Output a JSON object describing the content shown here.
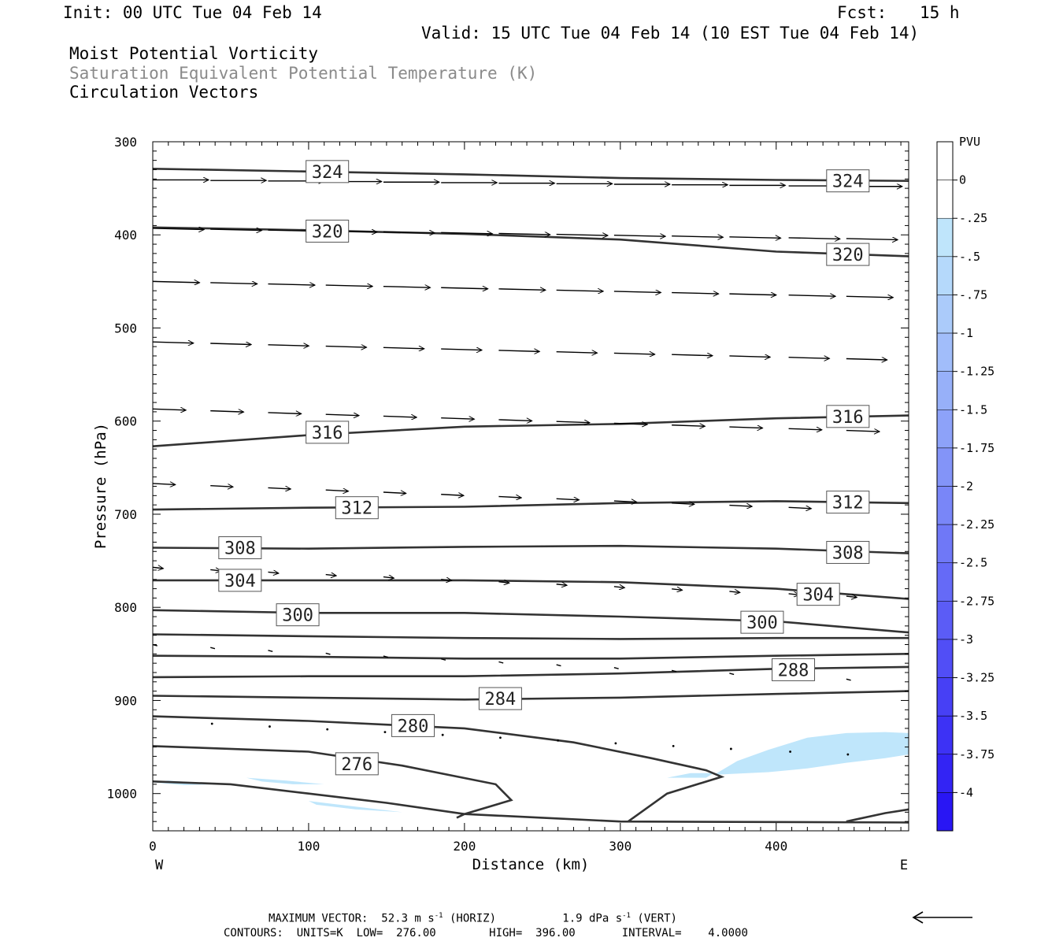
{
  "header": {
    "init": "Init: 00 UTC Tue 04 Feb 14",
    "fcst_label": "Fcst:",
    "fcst_value": "15 h",
    "valid": "Valid: 15 UTC Tue 04 Feb 14 (10 EST Tue 04 Feb 14)",
    "field1": "Moist Potential Vorticity",
    "field2": "Saturation Equivalent Potential Temperature (K)",
    "field3": "Circulation Vectors"
  },
  "colors": {
    "contour": "#333333",
    "shade_light": "#bfe6fb",
    "colorbar": [
      "#ffffff",
      "#ffffff",
      "#bfe5fb",
      "#b5d9fb",
      "#abcbfa",
      "#a1bdfa",
      "#97b0f9",
      "#8da2f9",
      "#8394f8",
      "#7986f8",
      "#6f78f7",
      "#656af7",
      "#5b5cf6",
      "#514ef6",
      "#4740f5",
      "#3d32f5",
      "#3324f4",
      "#2916f4",
      "#0000ff"
    ]
  },
  "chart_data": {
    "type": "cross-section",
    "xlabel": "Distance (km)",
    "ylabel": "Pressure (hPa)",
    "xlim": [
      0,
      485
    ],
    "ylim": [
      300,
      1040
    ],
    "x_ticks": [
      "0",
      "100",
      "200",
      "300",
      "400"
    ],
    "x_tick_values": [
      0,
      100,
      200,
      300,
      400
    ],
    "y_ticks": [
      "300",
      "400",
      "500",
      "600",
      "700",
      "800",
      "900",
      "1000"
    ],
    "y_tick_values": [
      300,
      400,
      500,
      600,
      700,
      800,
      900,
      1000
    ],
    "left_end": "W",
    "right_end": "E",
    "colorbar": {
      "unit": "PVU",
      "labels": [
        "0",
        "-.25",
        "-.5",
        "-.75",
        "-1",
        "-1.25",
        "-1.5",
        "-1.75",
        "-2",
        "-2.25",
        "-2.5",
        "-2.75",
        "-3",
        "-3.25",
        "-3.5",
        "-3.75",
        "-4"
      ],
      "values": [
        0,
        -0.25,
        -0.5,
        -0.75,
        -1,
        -1.25,
        -1.5,
        -1.75,
        -2,
        -2.25,
        -2.5,
        -2.75,
        -3,
        -3.25,
        -3.5,
        -3.75,
        -4
      ]
    },
    "contours": [
      {
        "value": 324,
        "points": [
          [
            0,
            329
          ],
          [
            100,
            332
          ],
          [
            200,
            335
          ],
          [
            300,
            339
          ],
          [
            400,
            341
          ],
          [
            485,
            342
          ]
        ],
        "labels": [
          {
            "text": "324",
            "x": 112,
            "p": 332
          },
          {
            "text": "324",
            "x": 446,
            "p": 342
          }
        ]
      },
      {
        "value": 320,
        "points": [
          [
            0,
            392
          ],
          [
            100,
            395
          ],
          [
            200,
            399
          ],
          [
            300,
            405
          ],
          [
            400,
            418
          ],
          [
            485,
            423
          ]
        ],
        "labels": [
          {
            "text": "320",
            "x": 112,
            "p": 396
          },
          {
            "text": "320",
            "x": 446,
            "p": 421
          }
        ]
      },
      {
        "value": 316,
        "points": [
          [
            0,
            627
          ],
          [
            100,
            615
          ],
          [
            200,
            606
          ],
          [
            300,
            603
          ],
          [
            400,
            597
          ],
          [
            485,
            594
          ]
        ],
        "labels": [
          {
            "text": "316",
            "x": 112,
            "p": 612
          },
          {
            "text": "316",
            "x": 446,
            "p": 595
          }
        ]
      },
      {
        "value": 312,
        "points": [
          [
            0,
            695
          ],
          [
            100,
            693
          ],
          [
            200,
            692
          ],
          [
            300,
            688
          ],
          [
            400,
            686
          ],
          [
            485,
            688
          ]
        ],
        "labels": [
          {
            "text": "312",
            "x": 131,
            "p": 693
          },
          {
            "text": "312",
            "x": 446,
            "p": 687
          }
        ]
      },
      {
        "value": 308,
        "points": [
          [
            0,
            736
          ],
          [
            100,
            737
          ],
          [
            200,
            735
          ],
          [
            300,
            734
          ],
          [
            400,
            737
          ],
          [
            485,
            742
          ]
        ],
        "labels": [
          {
            "text": "308",
            "x": 56,
            "p": 736
          },
          {
            "text": "308",
            "x": 446,
            "p": 741
          }
        ]
      },
      {
        "value": 304,
        "points": [
          [
            0,
            771
          ],
          [
            100,
            771
          ],
          [
            200,
            771
          ],
          [
            300,
            773
          ],
          [
            400,
            780
          ],
          [
            485,
            791
          ]
        ],
        "labels": [
          {
            "text": "304",
            "x": 56,
            "p": 771
          },
          {
            "text": "304",
            "x": 427,
            "p": 786
          }
        ]
      },
      {
        "value": 300,
        "points": [
          [
            0,
            803
          ],
          [
            100,
            806
          ],
          [
            200,
            806
          ],
          [
            300,
            810
          ],
          [
            400,
            815
          ],
          [
            485,
            827
          ]
        ],
        "labels": [
          {
            "text": "300",
            "x": 93,
            "p": 808
          },
          {
            "text": "300",
            "x": 391,
            "p": 816
          }
        ]
      },
      {
        "value": null,
        "points": [
          [
            0,
            829
          ],
          [
            100,
            831
          ],
          [
            200,
            833
          ],
          [
            300,
            834
          ],
          [
            400,
            833
          ],
          [
            485,
            833
          ]
        ],
        "labels": []
      },
      {
        "value": null,
        "points": [
          [
            0,
            852
          ],
          [
            100,
            853
          ],
          [
            200,
            855
          ],
          [
            300,
            855
          ],
          [
            400,
            852
          ],
          [
            485,
            850
          ]
        ],
        "labels": []
      },
      {
        "value": 288,
        "points": [
          [
            0,
            875
          ],
          [
            100,
            874
          ],
          [
            200,
            874
          ],
          [
            300,
            871
          ],
          [
            400,
            866
          ],
          [
            485,
            864
          ]
        ],
        "labels": [
          {
            "text": "288",
            "x": 411,
            "p": 867
          }
        ]
      },
      {
        "value": 284,
        "points": [
          [
            0,
            895
          ],
          [
            100,
            897
          ],
          [
            200,
            899
          ],
          [
            300,
            897
          ],
          [
            400,
            893
          ],
          [
            485,
            890
          ]
        ],
        "labels": [
          {
            "text": "284",
            "x": 223,
            "p": 898
          }
        ]
      },
      {
        "value": 280,
        "points": [
          [
            0,
            917
          ],
          [
            100,
            922
          ],
          [
            200,
            930
          ],
          [
            270,
            945
          ],
          [
            320,
            962
          ],
          [
            355,
            975
          ],
          [
            365,
            982
          ],
          [
            330,
            1000
          ],
          [
            305,
            1030
          ]
        ],
        "labels": [
          {
            "text": "280",
            "x": 167,
            "p": 927
          }
        ]
      },
      {
        "value": 276,
        "points": [
          [
            0,
            949
          ],
          [
            100,
            955
          ],
          [
            160,
            970
          ],
          [
            220,
            990
          ],
          [
            230,
            1007
          ],
          [
            200,
            1022
          ],
          [
            195,
            1026
          ]
        ],
        "labels": [
          {
            "text": "276",
            "x": 131,
            "p": 968
          }
        ]
      },
      {
        "value": null,
        "points": [
          [
            0,
            987
          ],
          [
            50,
            990
          ],
          [
            100,
            1000
          ],
          [
            150,
            1010
          ],
          [
            200,
            1022
          ],
          [
            250,
            1026
          ],
          [
            300,
            1030
          ],
          [
            485,
            1031
          ]
        ],
        "labels": []
      },
      {
        "value": null,
        "points": [
          [
            445,
            1030
          ],
          [
            470,
            1021
          ],
          [
            485,
            1017
          ]
        ],
        "labels": []
      }
    ],
    "shaded": [
      {
        "level": -0.25,
        "points": [
          [
            360,
            980
          ],
          [
            375,
            965
          ],
          [
            395,
            953
          ],
          [
            420,
            940
          ],
          [
            445,
            935
          ],
          [
            470,
            934
          ],
          [
            485,
            935
          ],
          [
            485,
            958
          ],
          [
            470,
            962
          ],
          [
            445,
            967
          ],
          [
            420,
            973
          ],
          [
            395,
            977
          ],
          [
            370,
            979
          ]
        ]
      },
      {
        "level": -0.25,
        "points": [
          [
            330,
            983
          ],
          [
            345,
            978
          ],
          [
            360,
            978
          ],
          [
            355,
            983
          ]
        ]
      },
      {
        "level": -0.25,
        "points": [
          [
            60,
            983
          ],
          [
            85,
            986
          ],
          [
            110,
            990
          ],
          [
            90,
            990
          ],
          [
            70,
            987
          ]
        ]
      },
      {
        "level": -0.25,
        "points": [
          [
            0,
            988
          ],
          [
            10,
            986
          ],
          [
            40,
            990
          ],
          [
            20,
            991
          ]
        ]
      },
      {
        "level": -0.25,
        "points": [
          [
            100,
            1008
          ],
          [
            130,
            1014
          ],
          [
            160,
            1020
          ],
          [
            130,
            1017
          ],
          [
            105,
            1012
          ]
        ]
      }
    ],
    "vectors": [
      {
        "p": 341,
        "y_end": 348,
        "xs": [
          0,
          37,
          74,
          111,
          148,
          185,
          222,
          259,
          296,
          333,
          370,
          408,
          445
        ],
        "u": 37,
        "w": 0
      },
      {
        "p": 393,
        "y_end": 404,
        "xs": [
          0,
          37,
          74,
          111,
          148,
          185,
          222,
          259,
          296,
          333,
          370,
          408,
          445
        ],
        "u": 34,
        "w": 1
      },
      {
        "p": 450,
        "y_end": 466,
        "xs": [
          0,
          37,
          74,
          111,
          148,
          185,
          222,
          259,
          296,
          333,
          370,
          408,
          445
        ],
        "u": 31,
        "w": 1
      },
      {
        "p": 515,
        "y_end": 533,
        "xs": [
          0,
          37,
          74,
          111,
          148,
          185,
          222,
          259,
          296,
          333,
          370,
          408,
          445
        ],
        "u": 27,
        "w": 1
      },
      {
        "p": 587,
        "y_end": 610,
        "xs": [
          0,
          37,
          74,
          111,
          148,
          185,
          222,
          259,
          296,
          333,
          370,
          408,
          445
        ],
        "u": 22,
        "w": 1
      },
      {
        "p": 667,
        "y_end": 695,
        "xs": [
          0,
          37,
          74,
          111,
          148,
          185,
          222,
          259,
          296,
          333,
          370,
          408,
          445
        ],
        "u": 15,
        "w": 1
      },
      {
        "p": 757,
        "y_end": 788,
        "xs": [
          0,
          37,
          74,
          111,
          148,
          185,
          222,
          259,
          296,
          333,
          370,
          408,
          445
        ],
        "u": 7,
        "w": 1
      },
      {
        "p": 840,
        "y_end": 877,
        "xs": [
          0,
          37,
          74,
          111,
          148,
          185,
          222,
          259,
          296,
          333,
          370,
          408,
          445
        ],
        "u": 3,
        "w": 1
      },
      {
        "p": 925,
        "y_end": 958,
        "xs": [
          37,
          74,
          111,
          148,
          185,
          222,
          259,
          296,
          333,
          370,
          408,
          445
        ],
        "u": 0,
        "w": 1
      }
    ],
    "max_vector_arrow": "left"
  },
  "footer": {
    "line1_a": "MAXIMUM VECTOR:  52.3 m s",
    "line1_b": "-1",
    "line1_c": " (HORIZ)          1.9 dPa s",
    "line1_d": "-1",
    "line1_e": " (VERT)",
    "line2": "CONTOURS:  UNITS=K  LOW=  276.00        HIGH=  396.00       INTERVAL=    4.0000"
  }
}
